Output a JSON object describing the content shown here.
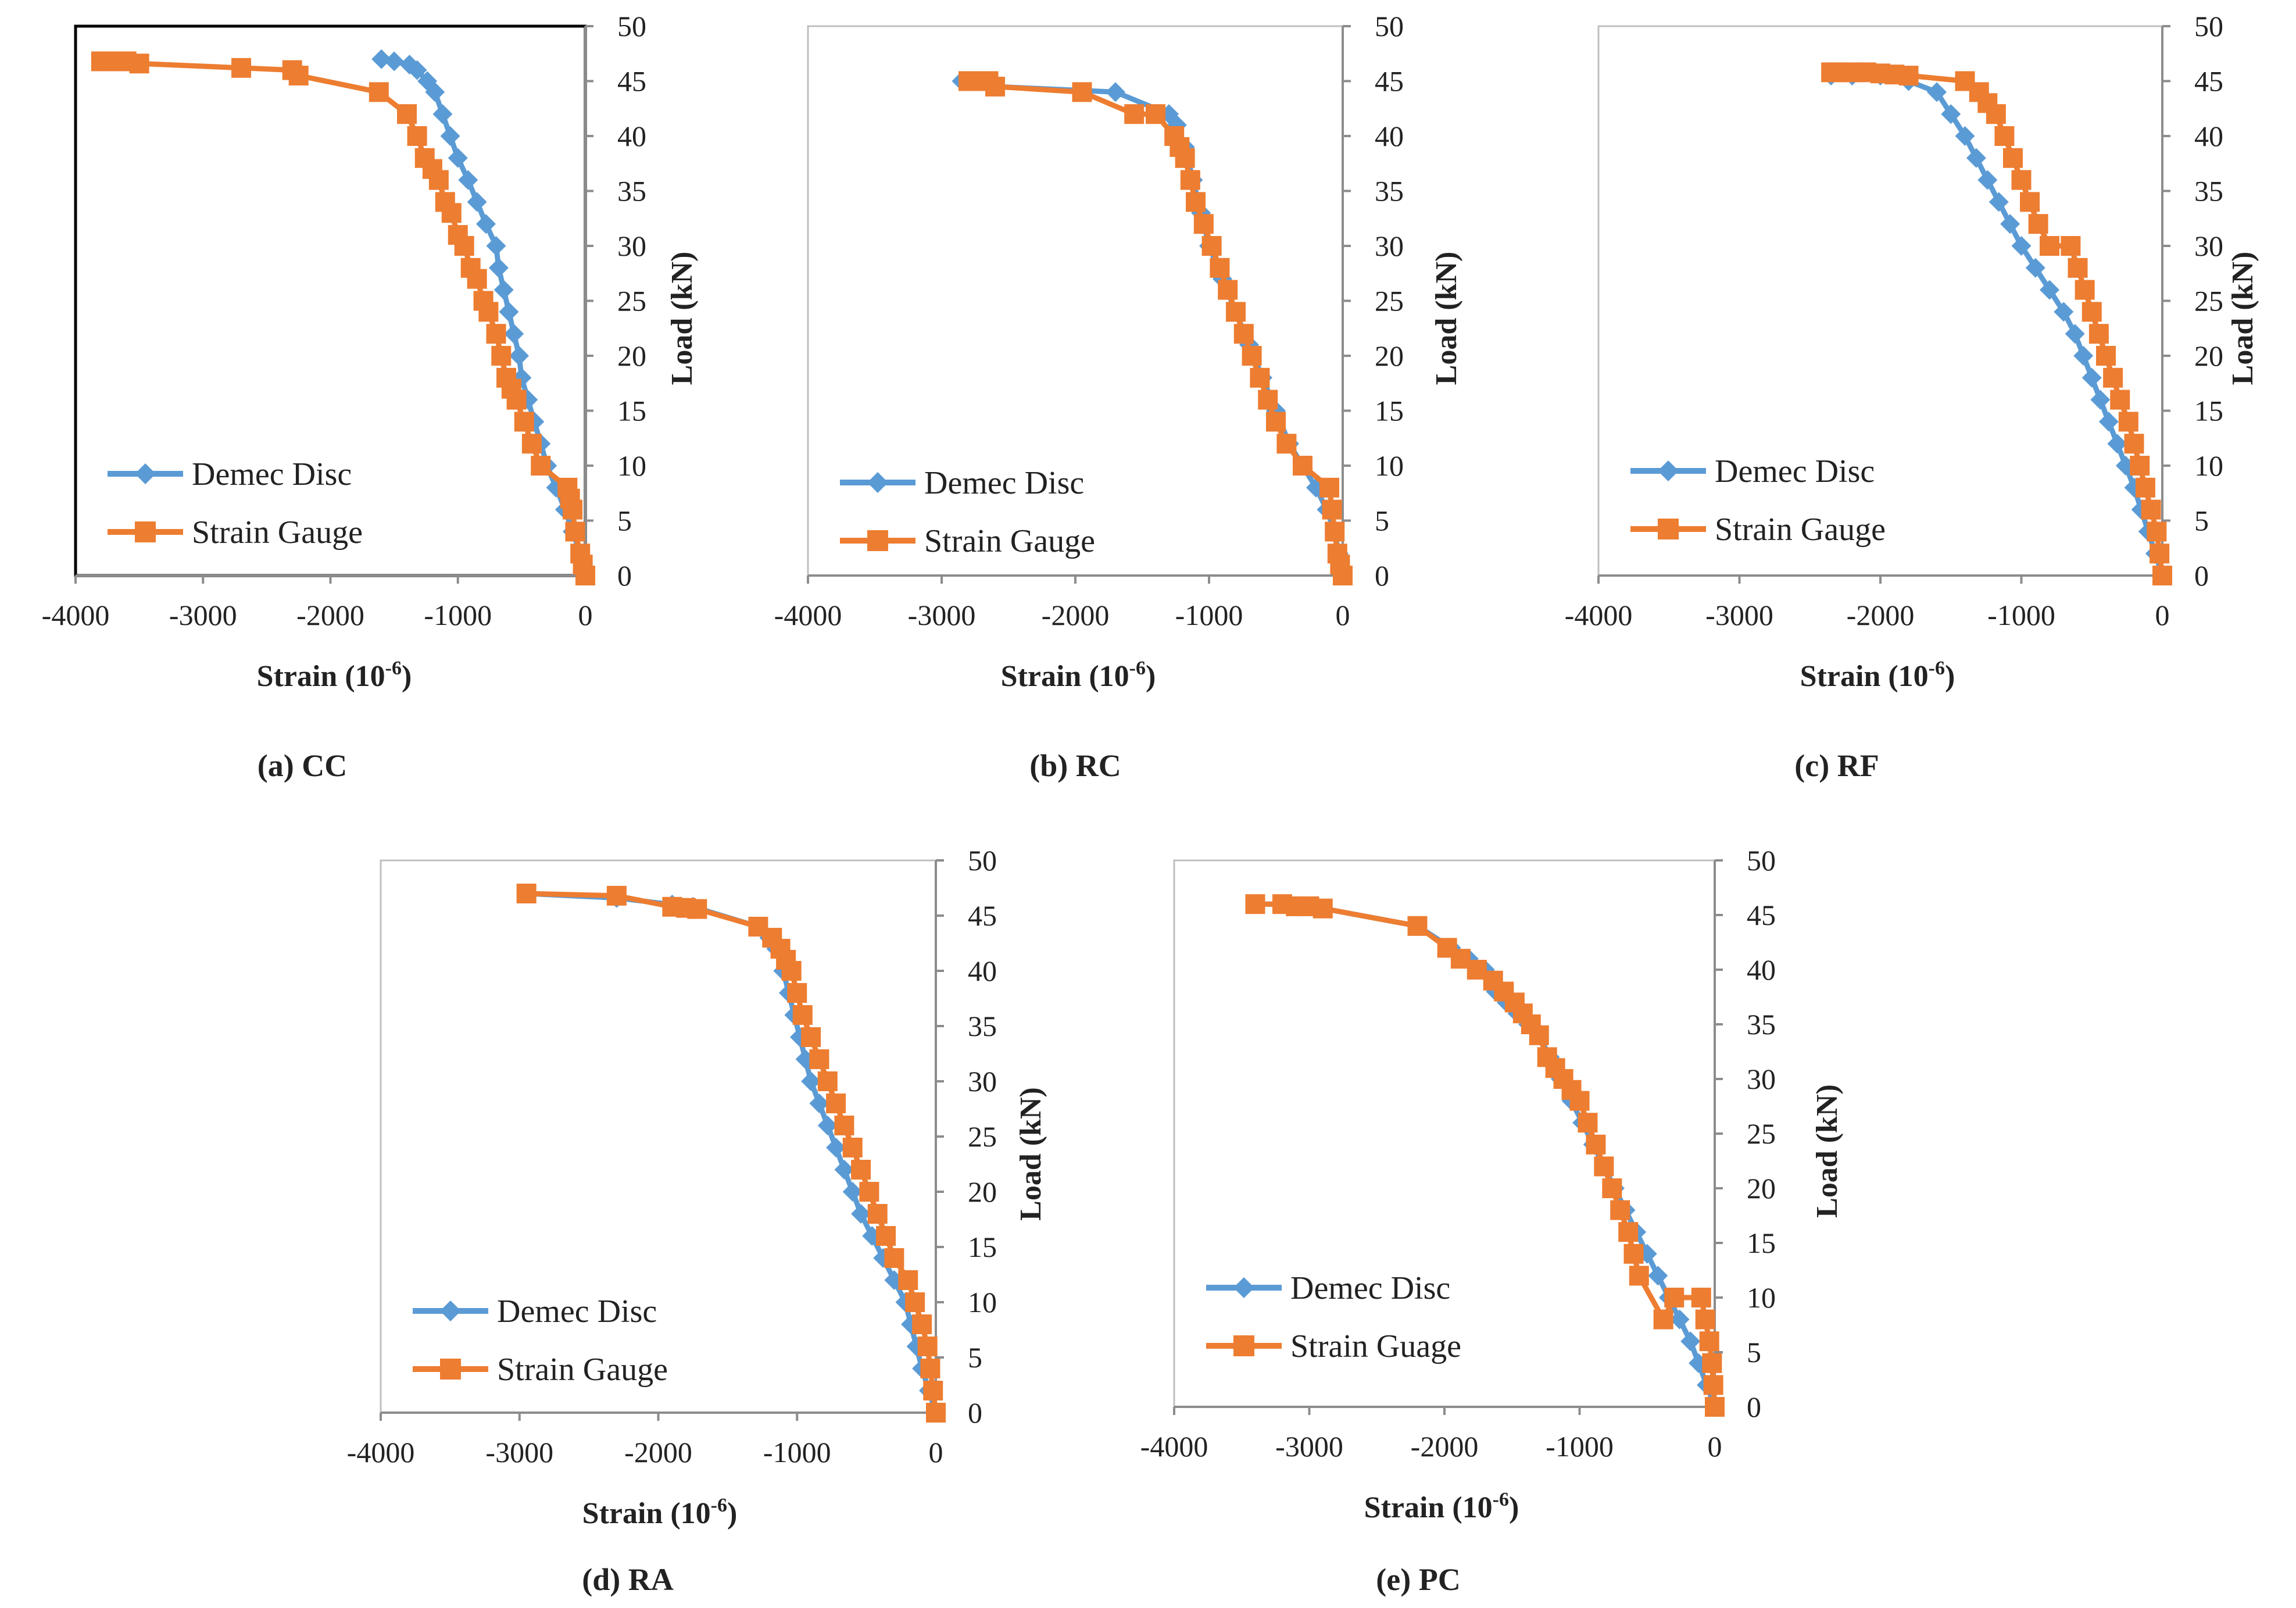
{
  "colors": {
    "demec": "#5b9bd5",
    "strain": "#ed7d31",
    "axis": "#8c8c8c",
    "text": "#222222"
  },
  "chart_data": [
    {
      "type": "line",
      "caption": "(a) CC",
      "xlabel": "Strain (10",
      "xlabel_exp": "-6",
      "xlabel_close": ")",
      "ylabel": "Load (kN)",
      "xlim": [
        -4000,
        0
      ],
      "ylim": [
        0,
        50
      ],
      "xticks": [
        "-4000",
        "-3000",
        "-2000",
        "-1000",
        "0"
      ],
      "yticks": [
        "0",
        "5",
        "10",
        "15",
        "20",
        "25",
        "30",
        "35",
        "40",
        "45",
        "50"
      ],
      "legend": [
        "Demec Disc",
        "Strain Gauge"
      ],
      "series": [
        {
          "name": "Demec Disc",
          "x": [
            0,
            -40,
            -100,
            -160,
            -230,
            -300,
            -350,
            -400,
            -450,
            -500,
            -520,
            -560,
            -600,
            -640,
            -680,
            -700,
            -780,
            -850,
            -920,
            -1000,
            -1060,
            -1120,
            -1180,
            -1240,
            -1320,
            -1380,
            -1500,
            -1600
          ],
          "y": [
            0,
            2,
            4,
            6,
            8,
            10,
            12,
            14,
            16,
            18,
            20,
            22,
            24,
            26,
            28,
            30,
            32,
            34,
            36,
            38,
            40,
            42,
            44,
            45,
            46,
            46.5,
            46.8,
            47
          ]
        },
        {
          "name": "Strain Gauge",
          "x": [
            0,
            -20,
            -40,
            -80,
            -100,
            -120,
            -140,
            -350,
            -420,
            -480,
            -540,
            -580,
            -620,
            -660,
            -700,
            -760,
            -800,
            -850,
            -900,
            -950,
            -1000,
            -1050,
            -1100,
            -1150,
            -1200,
            -1260,
            -1320,
            -1400,
            -1620,
            -2250,
            -2300,
            -2700,
            -3500,
            -3600,
            -3700,
            -3800
          ],
          "y": [
            0,
            1,
            2,
            4,
            6,
            7,
            8,
            10,
            12,
            14,
            16,
            17,
            18,
            20,
            22,
            24,
            25,
            27,
            28,
            30,
            31,
            33,
            34,
            36,
            37,
            38,
            40,
            42,
            44,
            45.5,
            46,
            46.2,
            46.6,
            46.8,
            46.8,
            46.8
          ]
        }
      ]
    },
    {
      "type": "line",
      "caption": "(b) RC",
      "xlabel": "Strain (10",
      "xlabel_exp": "-6",
      "xlabel_close": ")",
      "ylabel": "Load (kN)",
      "xlim": [
        -4000,
        0
      ],
      "ylim": [
        0,
        50
      ],
      "xticks": [
        "-4000",
        "-3000",
        "-2000",
        "-1000",
        "0"
      ],
      "yticks": [
        "0",
        "5",
        "10",
        "15",
        "20",
        "25",
        "30",
        "35",
        "40",
        "45",
        "50"
      ],
      "legend": [
        "Demec Disc",
        "Strain Gauge"
      ],
      "series": [
        {
          "name": "Demec Disc",
          "x": [
            0,
            -30,
            -60,
            -120,
            -200,
            -300,
            -400,
            -500,
            -600,
            -700,
            -800,
            -900,
            -1000,
            -1060,
            -1120,
            -1180,
            -1240,
            -1300,
            -1700,
            -2600,
            -2700,
            -2850
          ],
          "y": [
            0,
            2,
            4,
            6,
            8,
            10,
            12,
            15,
            18,
            21,
            24,
            27,
            30,
            33,
            36,
            39,
            41,
            42,
            44,
            44.5,
            45,
            45
          ]
        },
        {
          "name": "Strain Gauge",
          "x": [
            0,
            -20,
            -40,
            -60,
            -80,
            -100,
            -300,
            -420,
            -500,
            -560,
            -620,
            -680,
            -740,
            -800,
            -860,
            -920,
            -980,
            -1040,
            -1100,
            -1140,
            -1180,
            -1220,
            -1260,
            -1400,
            -1560,
            -1950,
            -2600,
            -2650,
            -2700,
            -2750,
            -2800
          ],
          "y": [
            0,
            1,
            2,
            4,
            6,
            8,
            10,
            12,
            14,
            16,
            18,
            20,
            22,
            24,
            26,
            28,
            30,
            32,
            34,
            36,
            38,
            39,
            40,
            42,
            42,
            44,
            44.5,
            45,
            45,
            45,
            45
          ]
        }
      ]
    },
    {
      "type": "line",
      "caption": "(c) RF",
      "xlabel": "Strain (10",
      "xlabel_exp": "-6",
      "xlabel_close": ")",
      "ylabel": "Load (kN)",
      "xlim": [
        -4000,
        0
      ],
      "ylim": [
        0,
        50
      ],
      "xticks": [
        "-4000",
        "-3000",
        "-2000",
        "-1000",
        "0"
      ],
      "yticks": [
        "0",
        "5",
        "10",
        "15",
        "20",
        "25",
        "30",
        "35",
        "40",
        "45",
        "50"
      ],
      "legend": [
        "Demec Disc",
        "Strain Gauge"
      ],
      "series": [
        {
          "name": "Demec Disc",
          "x": [
            0,
            -50,
            -100,
            -150,
            -200,
            -260,
            -320,
            -380,
            -440,
            -500,
            -560,
            -620,
            -700,
            -800,
            -900,
            -1000,
            -1080,
            -1160,
            -1240,
            -1320,
            -1400,
            -1500,
            -1600,
            -1800,
            -2000,
            -2200,
            -2350
          ],
          "y": [
            0,
            2,
            4,
            6,
            8,
            10,
            12,
            14,
            16,
            18,
            20,
            22,
            24,
            26,
            28,
            30,
            32,
            34,
            36,
            38,
            40,
            42,
            44,
            45,
            45.5,
            45.5,
            45.5
          ]
        },
        {
          "name": "Strain Gauge",
          "x": [
            0,
            -20,
            -40,
            -80,
            -120,
            -160,
            -200,
            -240,
            -300,
            -350,
            -400,
            -450,
            -500,
            -550,
            -600,
            -650,
            -800,
            -880,
            -940,
            -1000,
            -1060,
            -1120,
            -1180,
            -1240,
            -1300,
            -1400,
            -1800,
            -1900,
            -2000,
            -2100,
            -2200,
            -2300,
            -2350
          ],
          "y": [
            0,
            2,
            4,
            6,
            8,
            10,
            12,
            14,
            16,
            18,
            20,
            22,
            24,
            26,
            28,
            30,
            30,
            32,
            34,
            36,
            38,
            40,
            42,
            43,
            44,
            45,
            45.5,
            45.6,
            45.7,
            45.8,
            45.8,
            45.8,
            45.8
          ]
        }
      ]
    },
    {
      "type": "line",
      "caption": "(d) RA",
      "xlabel": "Strain (10",
      "xlabel_exp": "-6",
      "xlabel_close": ")",
      "ylabel": "Load (kN)",
      "xlim": [
        -4000,
        0
      ],
      "ylim": [
        0,
        50
      ],
      "xticks": [
        "-4000",
        "-3000",
        "-2000",
        "-1000",
        "0"
      ],
      "yticks": [
        "0",
        "5",
        "10",
        "15",
        "20",
        "25",
        "30",
        "35",
        "40",
        "45",
        "50"
      ],
      "legend": [
        "Demec Disc",
        "Strain Gauge"
      ],
      "series": [
        {
          "name": "Demec Disc",
          "x": [
            0,
            -50,
            -100,
            -140,
            -180,
            -220,
            -300,
            -380,
            -460,
            -540,
            -600,
            -660,
            -720,
            -780,
            -840,
            -900,
            -940,
            -980,
            -1020,
            -1060,
            -1100,
            -1150,
            -1200,
            -1280,
            -1750,
            -1900,
            -2300,
            -2950
          ],
          "y": [
            0,
            2,
            4,
            6,
            8,
            10,
            12,
            14,
            16,
            18,
            20,
            22,
            24,
            26,
            28,
            30,
            32,
            34,
            36,
            38,
            40,
            42,
            43,
            44,
            45.8,
            46,
            46.6,
            47
          ]
        },
        {
          "name": "Strain Gauge",
          "x": [
            0,
            -20,
            -40,
            -60,
            -100,
            -150,
            -200,
            -300,
            -360,
            -420,
            -480,
            -540,
            -600,
            -660,
            -720,
            -780,
            -840,
            -900,
            -960,
            -1000,
            -1040,
            -1080,
            -1120,
            -1180,
            -1280,
            -1720,
            -1800,
            -1900,
            -2300,
            -2950
          ],
          "y": [
            0,
            2,
            4,
            6,
            8,
            10,
            12,
            14,
            16,
            18,
            20,
            22,
            24,
            26,
            28,
            30,
            32,
            34,
            36,
            38,
            40,
            41,
            42,
            43,
            44,
            45.6,
            45.7,
            45.8,
            46.8,
            47
          ]
        }
      ]
    },
    {
      "type": "line",
      "caption": "(e) PC",
      "xlabel": "Strain (10",
      "xlabel_exp": "-6",
      "xlabel_close": ")",
      "ylabel": "Load (kN)",
      "xlim": [
        -4000,
        0
      ],
      "ylim": [
        0,
        50
      ],
      "xticks": [
        "-4000",
        "-3000",
        "-2000",
        "-1000",
        "0"
      ],
      "yticks": [
        "0",
        "5",
        "10",
        "15",
        "20",
        "25",
        "30",
        "35",
        "40",
        "45",
        "50"
      ],
      "legend": [
        "Demec Disc",
        "Strain Guage"
      ],
      "series": [
        {
          "name": "Demec Disc",
          "x": [
            0,
            -60,
            -120,
            -180,
            -260,
            -340,
            -420,
            -500,
            -580,
            -660,
            -740,
            -820,
            -900,
            -980,
            -1060,
            -1140,
            -1220,
            -1300,
            -1380,
            -1460,
            -1540,
            -1620,
            -1700,
            -1820,
            -1950,
            -2200,
            -2900,
            -3000,
            -3100,
            -3200,
            -3400
          ],
          "y": [
            0,
            2,
            4,
            6,
            8,
            10,
            12,
            14,
            16,
            18,
            20,
            22,
            24,
            26,
            28,
            30,
            32,
            34,
            35,
            36,
            37,
            38,
            40,
            41,
            42,
            44,
            45.6,
            45.8,
            45.8,
            46,
            46
          ]
        },
        {
          "name": "Strain Gauge",
          "x": [
            0,
            -10,
            -20,
            -40,
            -70,
            -100,
            -300,
            -380,
            -560,
            -600,
            -640,
            -700,
            -760,
            -820,
            -880,
            -940,
            -1000,
            -1060,
            -1120,
            -1180,
            -1240,
            -1300,
            -1360,
            -1420,
            -1480,
            -1560,
            -1640,
            -1760,
            -1880,
            -1980,
            -2200,
            -2900,
            -3000,
            -3100,
            -3200,
            -3400
          ],
          "y": [
            0,
            2,
            4,
            6,
            8,
            10,
            10,
            8,
            12,
            14,
            16,
            18,
            20,
            22,
            24,
            26,
            28,
            29,
            30,
            31,
            32,
            34,
            35,
            36,
            37,
            38,
            39,
            40,
            41,
            42,
            44,
            45.6,
            45.8,
            45.8,
            46,
            46
          ]
        }
      ]
    }
  ]
}
